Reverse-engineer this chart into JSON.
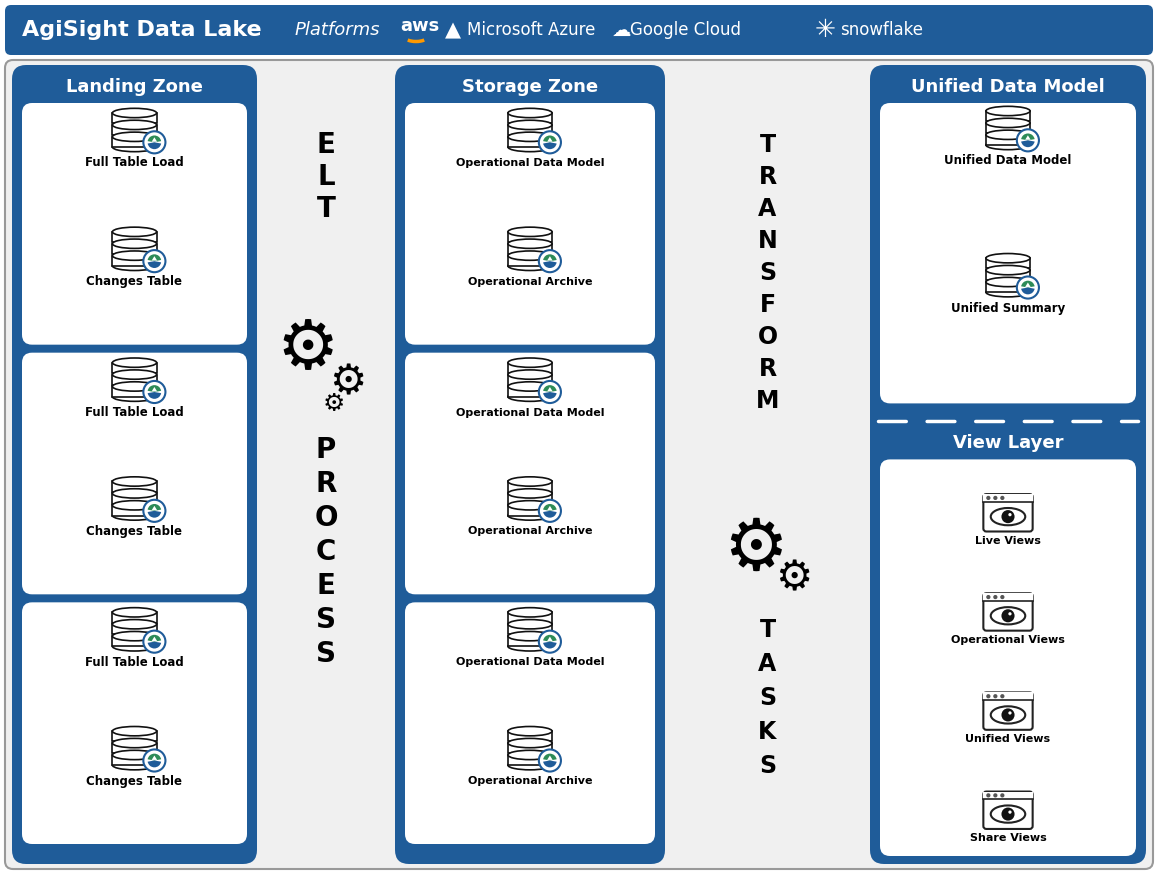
{
  "bg_color": "#ffffff",
  "outer_border_color": "#aaaaaa",
  "header_color": "#1f5c99",
  "zone_color": "#1f5c99",
  "card_color": "#ffffff",
  "text_color": "#000000",
  "title": "AgiSight Data Lake",
  "platforms_text": "Platforms",
  "landing_zone_title": "Landing Zone",
  "storage_zone_title": "Storage Zone",
  "unified_model_title": "Unified Data Model",
  "view_layer_title": "View Layer",
  "landing_items": [
    [
      "Full Table Load",
      "Changes Table"
    ],
    [
      "Full Table Load",
      "Changes Table"
    ],
    [
      "Full Table Load",
      "Changes Table"
    ]
  ],
  "storage_items": [
    [
      "Operational Data Model",
      "Operational Archive"
    ],
    [
      "Operational Data Model",
      "Operational Archive"
    ],
    [
      "Operational Data Model",
      "Operational Archive"
    ]
  ],
  "unified_items": [
    "Unified Data Model",
    "Unified Summary"
  ],
  "view_items": [
    "Live Views",
    "Operational Views",
    "Unified Views",
    "Share Views"
  ],
  "elt_chars": [
    "E",
    "L",
    "T",
    "P",
    "R",
    "O",
    "C",
    "E",
    "S",
    "S"
  ],
  "transform_chars": [
    "T",
    "R",
    "A",
    "N",
    "S",
    "F",
    "O",
    "R",
    "M",
    "T",
    "A",
    "S",
    "K",
    "S"
  ],
  "logo_green": "#2d8b57",
  "logo_blue": "#1f5c99",
  "logo_white": "#ffffff"
}
